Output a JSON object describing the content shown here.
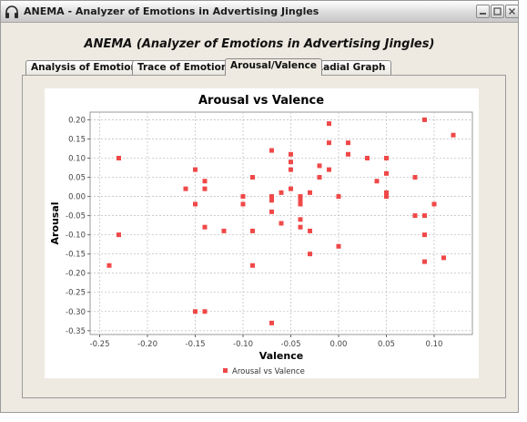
{
  "window": {
    "title": "ANEMA - Analyzer of Emotions in Advertising Jingles",
    "icon": "headphones-icon",
    "buttons": [
      "minimize-icon",
      "maximize-icon",
      "close-icon"
    ]
  },
  "heading": "ANEMA (Analyzer of Emotions in Advertising Jingles)",
  "tabs": [
    {
      "label": "Analysis of Emotions",
      "active": false
    },
    {
      "label": "Trace of Emotions",
      "active": false
    },
    {
      "label": "Arousal/Valence",
      "active": true
    },
    {
      "label": "Radial Graph",
      "active": false
    }
  ],
  "chart_data": {
    "type": "scatter",
    "title": "Arousal vs Valence",
    "xlabel": "Valence",
    "ylabel": "Arousal",
    "xlim": [
      -0.26,
      0.14
    ],
    "ylim": [
      -0.36,
      0.22
    ],
    "xticks": [
      "-0.25",
      "-0.20",
      "-0.15",
      "-0.10",
      "-0.05",
      "0.00",
      "0.05",
      "0.10"
    ],
    "yticks": [
      "0.20",
      "0.15",
      "0.10",
      "0.05",
      "0.00",
      "-0.05",
      "-0.10",
      "-0.15",
      "-0.20",
      "-0.25",
      "-0.30",
      "-0.35"
    ],
    "grid": true,
    "legend_position": "bottom",
    "series": [
      {
        "name": "Arousal vs Valence",
        "color": "#f04848",
        "points": [
          [
            -0.24,
            -0.18
          ],
          [
            -0.23,
            0.1
          ],
          [
            -0.23,
            -0.1
          ],
          [
            -0.16,
            0.02
          ],
          [
            -0.15,
            0.07
          ],
          [
            -0.15,
            -0.02
          ],
          [
            -0.15,
            -0.3
          ],
          [
            -0.14,
            0.04
          ],
          [
            -0.14,
            0.02
          ],
          [
            -0.14,
            -0.08
          ],
          [
            -0.14,
            -0.3
          ],
          [
            -0.12,
            -0.09
          ],
          [
            -0.1,
            0.0
          ],
          [
            -0.1,
            -0.02
          ],
          [
            -0.09,
            0.05
          ],
          [
            -0.09,
            -0.09
          ],
          [
            -0.09,
            -0.18
          ],
          [
            -0.07,
            0.12
          ],
          [
            -0.07,
            0.0
          ],
          [
            -0.07,
            -0.01
          ],
          [
            -0.07,
            -0.04
          ],
          [
            -0.07,
            -0.33
          ],
          [
            -0.06,
            0.01
          ],
          [
            -0.06,
            -0.07
          ],
          [
            -0.05,
            0.11
          ],
          [
            -0.05,
            0.09
          ],
          [
            -0.05,
            0.07
          ],
          [
            -0.05,
            0.02
          ],
          [
            -0.04,
            0.0
          ],
          [
            -0.04,
            -0.01
          ],
          [
            -0.04,
            -0.02
          ],
          [
            -0.04,
            -0.06
          ],
          [
            -0.04,
            -0.08
          ],
          [
            -0.03,
            0.01
          ],
          [
            -0.03,
            -0.09
          ],
          [
            -0.03,
            -0.15
          ],
          [
            -0.02,
            0.08
          ],
          [
            -0.02,
            0.05
          ],
          [
            -0.01,
            0.19
          ],
          [
            -0.01,
            0.14
          ],
          [
            -0.01,
            0.07
          ],
          [
            0.0,
            0.0
          ],
          [
            0.0,
            -0.13
          ],
          [
            0.01,
            0.14
          ],
          [
            0.01,
            0.11
          ],
          [
            0.03,
            0.1
          ],
          [
            0.04,
            0.04
          ],
          [
            0.05,
            0.1
          ],
          [
            0.05,
            0.06
          ],
          [
            0.05,
            0.01
          ],
          [
            0.05,
            0.0
          ],
          [
            0.08,
            0.05
          ],
          [
            0.08,
            -0.05
          ],
          [
            0.09,
            0.2
          ],
          [
            0.09,
            -0.05
          ],
          [
            0.09,
            -0.1
          ],
          [
            0.09,
            -0.17
          ],
          [
            0.1,
            -0.02
          ],
          [
            0.11,
            -0.16
          ],
          [
            0.12,
            0.16
          ]
        ]
      }
    ]
  }
}
